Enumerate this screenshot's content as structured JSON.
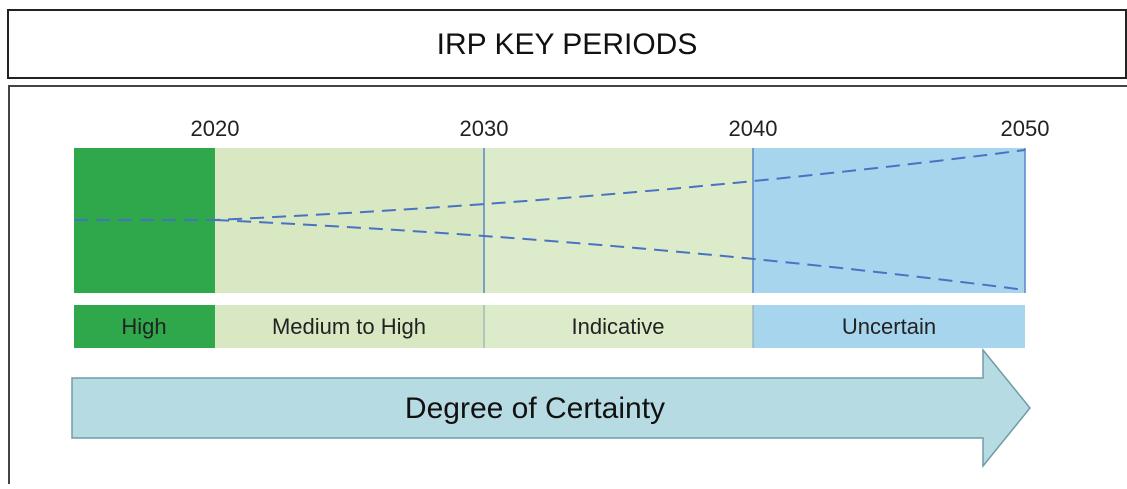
{
  "header": {
    "title": "IRP KEY PERIODS"
  },
  "timeline": {
    "years": [
      "2020",
      "2030",
      "2040",
      "2050"
    ],
    "periods": [
      "High",
      "Medium to High",
      "Indicative",
      "Uncertain"
    ]
  },
  "arrow": {
    "label": "Degree of Certainty"
  }
}
